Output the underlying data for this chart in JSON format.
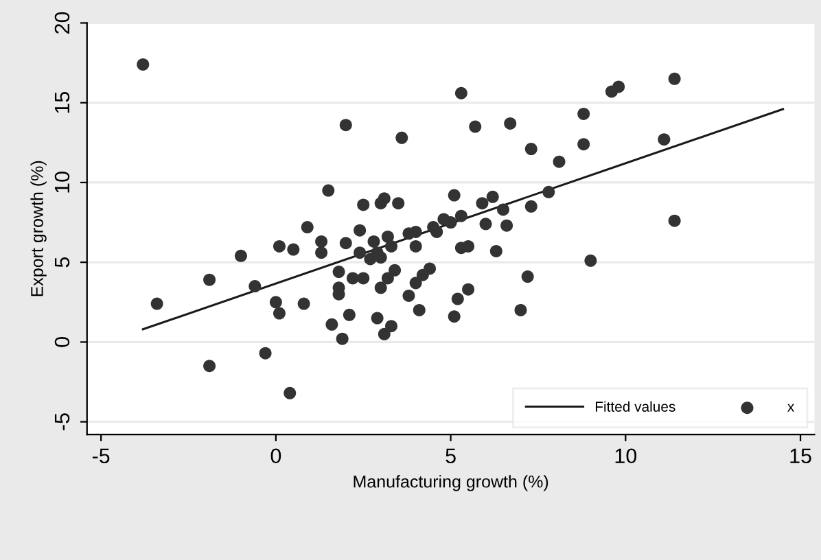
{
  "chart_data": {
    "type": "scatter",
    "xlabel": "Manufacturing growth (%)",
    "ylabel": "Export growth (%)",
    "xlim": [
      -5.4,
      15.4
    ],
    "xticks": [
      -5,
      0,
      5,
      10,
      15
    ],
    "ylim": [
      -5.8,
      20
    ],
    "yticks": [
      -5,
      0,
      5,
      10,
      15,
      20
    ],
    "grid": "y",
    "legend": "bottom right",
    "series": [
      {
        "name": "Fitted values",
        "type": "line",
        "marker": "none",
        "color": "#1a1a1a",
        "line_style": "solid",
        "x": [
          -3.8,
          14.5
        ],
        "values": [
          0.8,
          14.6
        ]
      },
      {
        "name": "x",
        "marker": "circle",
        "color": "#333333",
        "x": [
          -3.8,
          -3.4,
          -1.9,
          -1.9,
          -1.0,
          -0.6,
          -0.3,
          0.1,
          0.0,
          0.1,
          0.5,
          0.4,
          0.8,
          0.9,
          1.3,
          1.3,
          1.5,
          1.6,
          1.8,
          1.8,
          1.8,
          1.9,
          2.0,
          2.0,
          2.1,
          2.2,
          2.4,
          2.4,
          2.5,
          2.5,
          2.7,
          2.8,
          2.9,
          2.9,
          3.0,
          3.0,
          3.0,
          3.1,
          3.1,
          3.2,
          3.2,
          3.3,
          3.3,
          3.4,
          3.5,
          3.6,
          3.8,
          3.8,
          4.0,
          4.0,
          4.0,
          4.1,
          4.2,
          4.4,
          4.5,
          4.6,
          4.8,
          5.0,
          5.1,
          5.2,
          5.1,
          5.3,
          5.3,
          5.3,
          5.5,
          5.5,
          5.7,
          5.9,
          6.0,
          6.2,
          6.3,
          6.5,
          6.6,
          6.7,
          7.0,
          7.2,
          7.3,
          7.3,
          7.8,
          8.1,
          8.8,
          8.8,
          9.0,
          9.6,
          9.8,
          11.1,
          11.4,
          11.4
        ],
        "values": [
          17.4,
          2.4,
          3.9,
          -1.5,
          5.4,
          3.5,
          -0.7,
          6.0,
          2.5,
          1.8,
          5.8,
          -3.2,
          2.4,
          7.2,
          6.3,
          5.6,
          9.5,
          1.1,
          4.4,
          3.4,
          3.0,
          0.2,
          13.6,
          6.2,
          1.7,
          4.0,
          7.0,
          5.6,
          8.6,
          4.0,
          5.2,
          6.3,
          1.5,
          5.6,
          8.7,
          3.4,
          5.3,
          0.5,
          9.0,
          6.6,
          4.0,
          6.0,
          1.0,
          4.5,
          8.7,
          12.8,
          2.9,
          6.8,
          6.0,
          6.9,
          3.7,
          2.0,
          4.2,
          4.6,
          7.2,
          6.9,
          7.7,
          7.5,
          9.2,
          2.7,
          1.6,
          5.9,
          7.9,
          15.6,
          6.0,
          3.3,
          13.5,
          8.7,
          7.4,
          9.1,
          5.7,
          8.3,
          7.3,
          13.7,
          2.0,
          4.1,
          8.5,
          12.1,
          9.4,
          11.3,
          12.4,
          14.3,
          5.1,
          15.7,
          16.0,
          12.7,
          16.5,
          7.6
        ]
      }
    ]
  }
}
